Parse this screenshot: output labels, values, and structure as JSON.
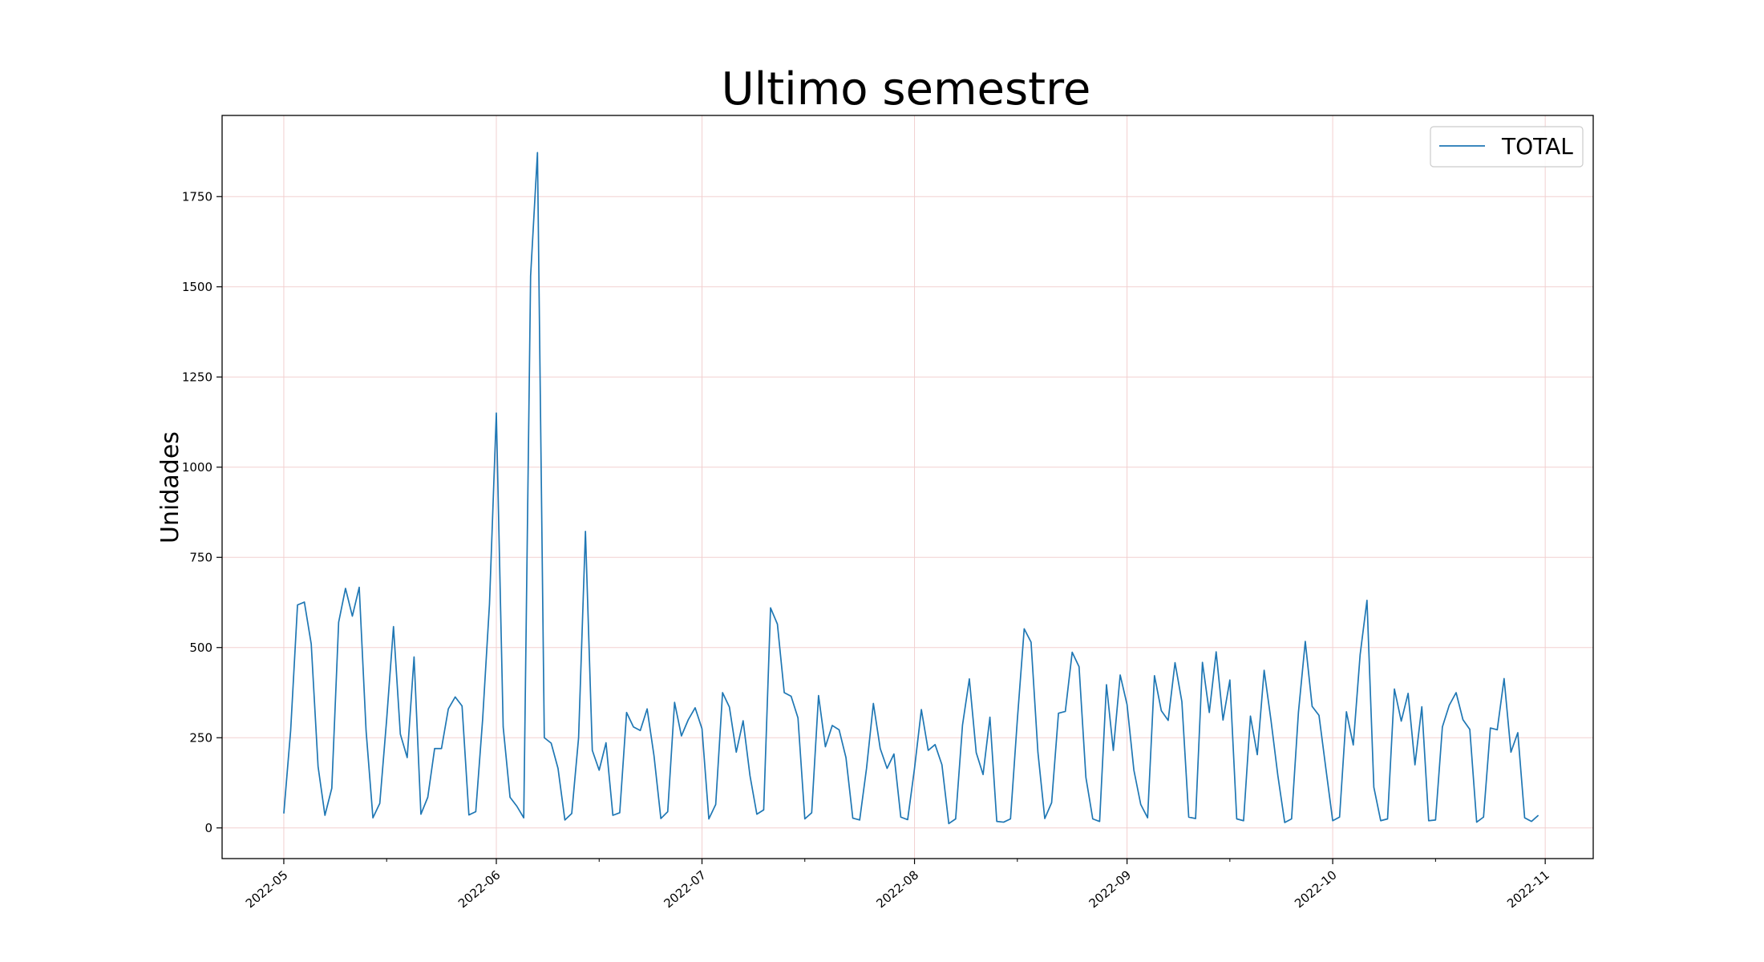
{
  "chart_data": {
    "type": "line",
    "title": "Ultimo semestre",
    "xlabel": "",
    "ylabel": "Unidades",
    "x_start": "2022-05-01",
    "x_end": "2022-10-31",
    "xlim": [
      "2022-04-22",
      "2022-11-08"
    ],
    "ylim": [
      -85,
      1975
    ],
    "yticks": [
      0,
      250,
      500,
      750,
      1000,
      1250,
      1500,
      1750
    ],
    "xticks": [
      "2022-05",
      "2022-06",
      "2022-07",
      "2022-08",
      "2022-09",
      "2022-10",
      "2022-11"
    ],
    "grid": true,
    "legend": {
      "position": "top-right",
      "entries": [
        "TOTAL"
      ]
    },
    "colors": {
      "line": "#1f77b4",
      "grid": "#f2d0d0"
    },
    "series": [
      {
        "name": "TOTAL",
        "values": [
          40,
          270,
          618,
          626,
          510,
          170,
          35,
          110,
          570,
          664,
          587,
          667,
          270,
          28,
          68,
          300,
          558,
          260,
          195,
          474,
          38,
          85,
          220,
          220,
          330,
          363,
          338,
          36,
          45,
          300,
          620,
          1150,
          280,
          85,
          60,
          28,
          1530,
          1872,
          250,
          235,
          165,
          22,
          40,
          250,
          822,
          215,
          160,
          236,
          35,
          42,
          320,
          280,
          270,
          330,
          200,
          26,
          45,
          348,
          255,
          300,
          333,
          275,
          25,
          65,
          375,
          335,
          210,
          297,
          145,
          38,
          50,
          610,
          565,
          375,
          365,
          305,
          25,
          42,
          367,
          225,
          284,
          272,
          195,
          27,
          22,
          165,
          345,
          220,
          165,
          205,
          30,
          23,
          165,
          328,
          215,
          231,
          175,
          12,
          25,
          285,
          413,
          209,
          148,
          307,
          18,
          16,
          25,
          300,
          552,
          515,
          210,
          26,
          70,
          318,
          323,
          487,
          447,
          140,
          25,
          18,
          397,
          215,
          424,
          342,
          160,
          65,
          28,
          422,
          325,
          298,
          458,
          350,
          30,
          26,
          459,
          320,
          488,
          299,
          410,
          25,
          20,
          310,
          203,
          437,
          298,
          145,
          15,
          25,
          320,
          517,
          337,
          312,
          165,
          20,
          30,
          322,
          230,
          480,
          631,
          113,
          20,
          25,
          385,
          296,
          373,
          175,
          336,
          20,
          22,
          280,
          340,
          375,
          300,
          273,
          16,
          30,
          277,
          272,
          414,
          210,
          264,
          28,
          18,
          35
        ]
      }
    ]
  }
}
